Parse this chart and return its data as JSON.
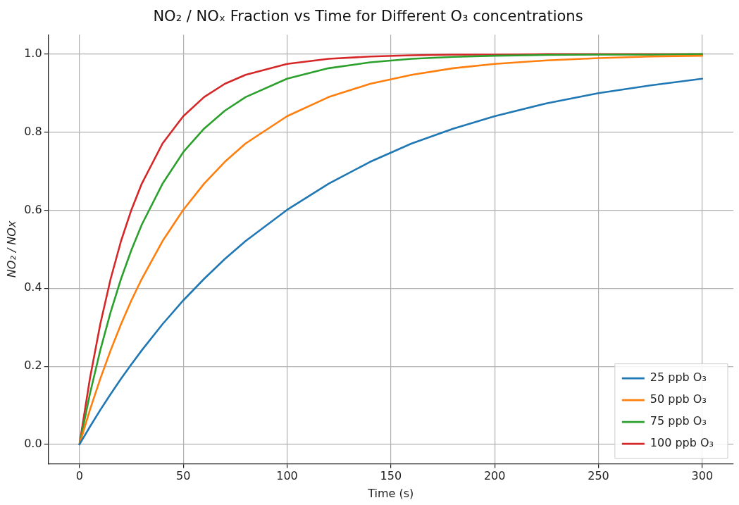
{
  "chart_data": {
    "type": "line",
    "title": "NO₂ / NOₓ Fraction vs Time for Different O₃ concentrations",
    "xlabel": "Time (s)",
    "ylabel": "NO₂ / NOx",
    "x": [
      0,
      5,
      10,
      15,
      20,
      25,
      30,
      40,
      50,
      60,
      70,
      80,
      100,
      120,
      140,
      160,
      180,
      200,
      225,
      250,
      275,
      300
    ],
    "series": [
      {
        "name": "25 ppb O₃",
        "color": "#1f77b4",
        "values": [
          0,
          0.045,
          0.088,
          0.129,
          0.168,
          0.205,
          0.241,
          0.308,
          0.369,
          0.424,
          0.475,
          0.521,
          0.601,
          0.668,
          0.724,
          0.771,
          0.809,
          0.841,
          0.874,
          0.9,
          0.92,
          0.937
        ]
      },
      {
        "name": "50 ppb O₃",
        "color": "#ff7f0e",
        "values": [
          0,
          0.088,
          0.168,
          0.241,
          0.308,
          0.369,
          0.424,
          0.521,
          0.601,
          0.668,
          0.724,
          0.771,
          0.841,
          0.89,
          0.924,
          0.947,
          0.964,
          0.975,
          0.984,
          0.99,
          0.994,
          0.996
        ]
      },
      {
        "name": "75 ppb O₃",
        "color": "#2ca02c",
        "values": [
          0,
          0.129,
          0.241,
          0.339,
          0.424,
          0.498,
          0.563,
          0.668,
          0.749,
          0.809,
          0.855,
          0.89,
          0.937,
          0.964,
          0.979,
          0.988,
          0.993,
          0.996,
          0.998,
          0.999,
          0.999,
          1.0
        ]
      },
      {
        "name": "100 ppb O₃",
        "color": "#d62728",
        "values": [
          0,
          0.168,
          0.308,
          0.424,
          0.521,
          0.601,
          0.668,
          0.771,
          0.841,
          0.89,
          0.924,
          0.947,
          0.975,
          0.988,
          0.994,
          0.997,
          0.999,
          0.999,
          1.0,
          1.0,
          1.0,
          1.0
        ]
      }
    ],
    "xlim": [
      -15,
      315
    ],
    "xticks": [
      0,
      50,
      100,
      150,
      200,
      250,
      300
    ],
    "ylim": [
      -0.05,
      1.05
    ],
    "yticks": [
      {
        "value": 0,
        "label": "0.0"
      },
      {
        "value": 0.2,
        "label": "0.2"
      },
      {
        "value": 0.4,
        "label": "0.4"
      },
      {
        "value": 0.6,
        "label": "0.6"
      },
      {
        "value": 0.8,
        "label": "0.8"
      },
      {
        "value": 1,
        "label": "1.0"
      }
    ],
    "grid": true,
    "legend": "bottom right",
    "marker": "none",
    "line_style": "solid"
  }
}
